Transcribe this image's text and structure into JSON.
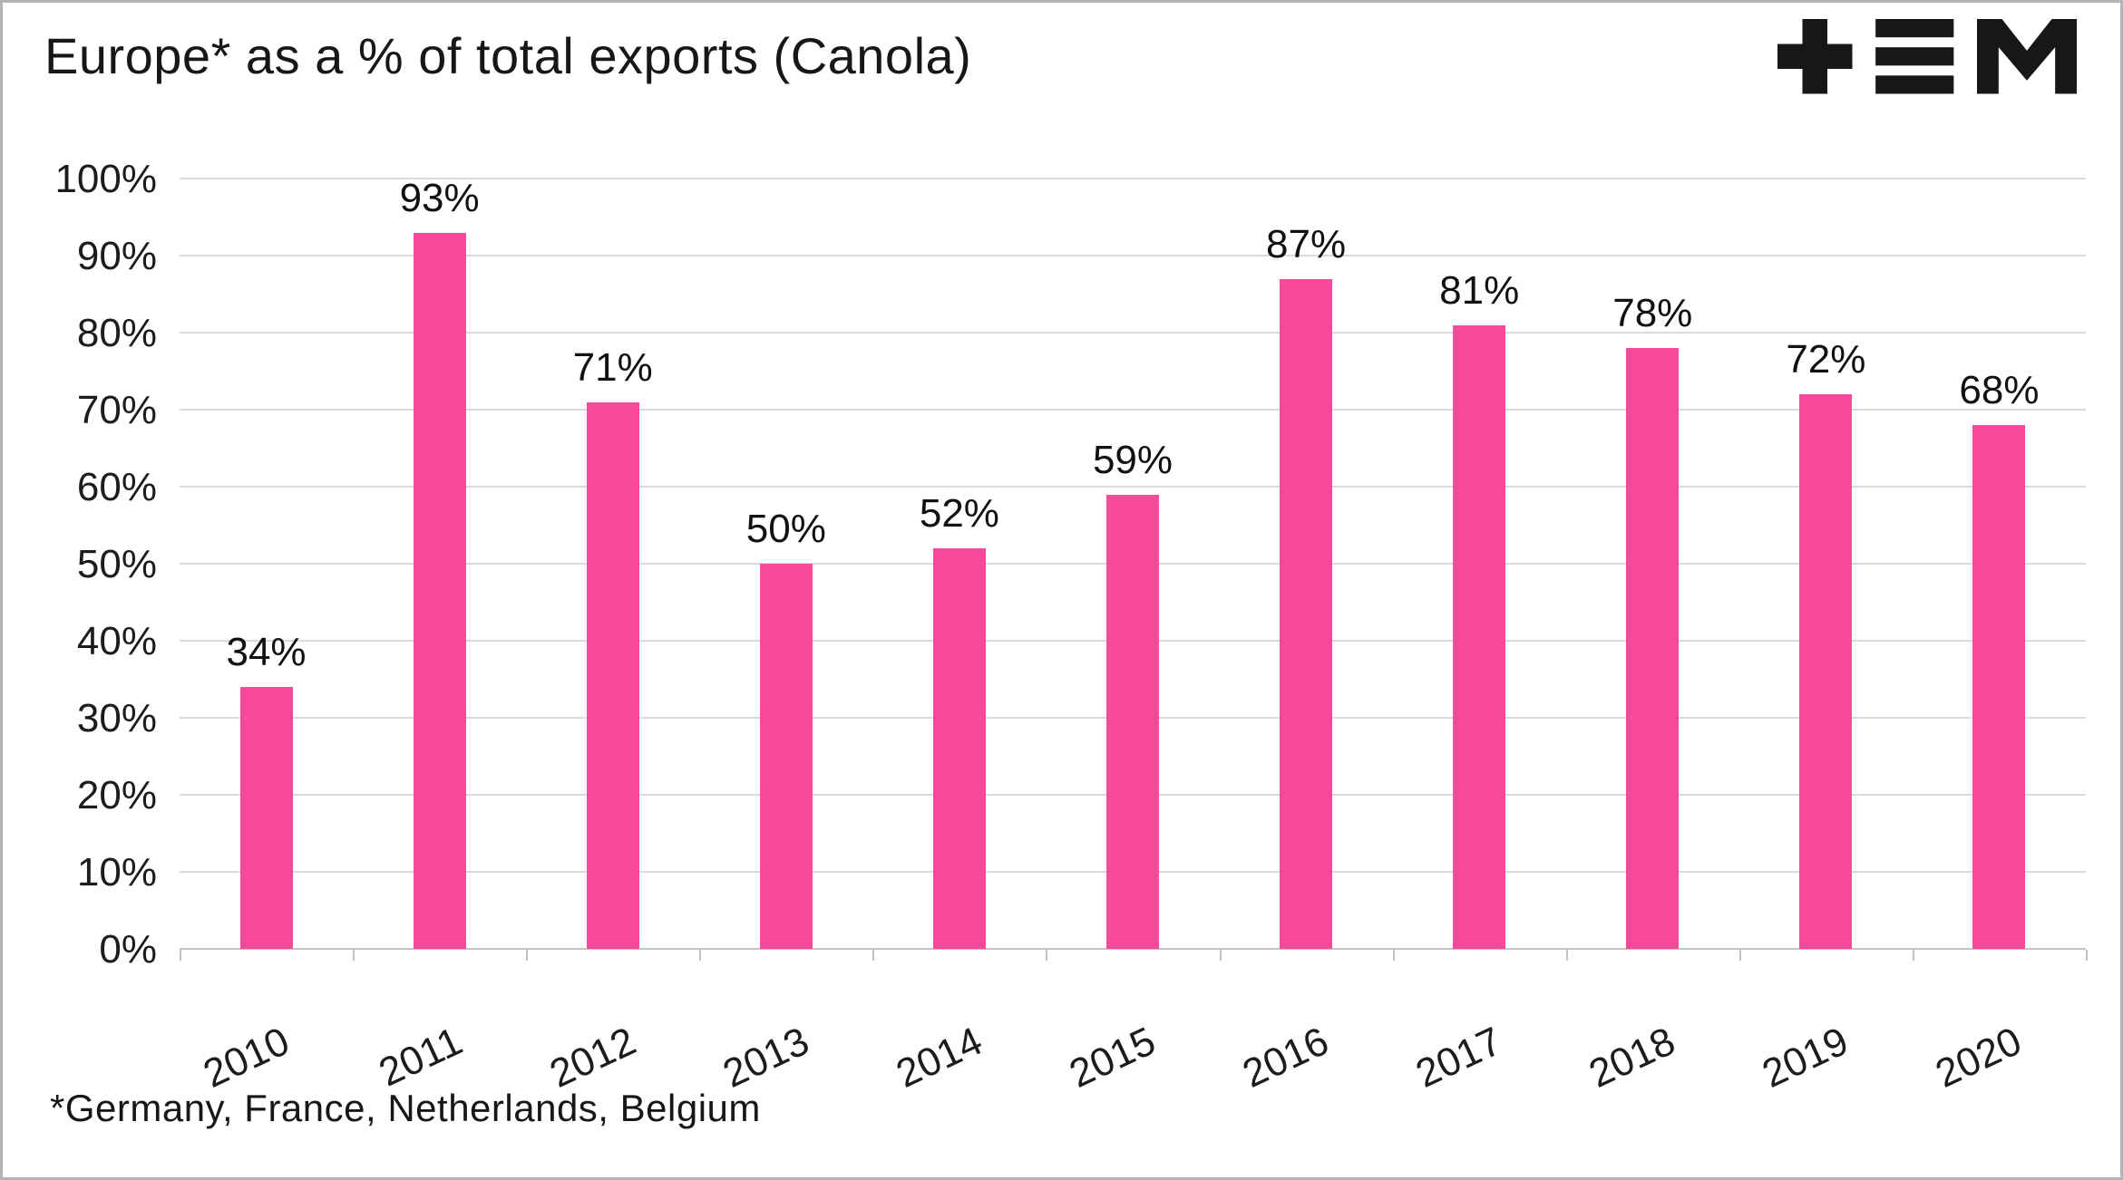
{
  "header": {
    "title": "Europe* as a % of total exports (Canola)",
    "logo_icon": "tem-logo"
  },
  "footnote": "*Germany, France, Netherlands, Belgium",
  "chart_data": {
    "type": "bar",
    "title": "Europe* as a % of total exports (Canola)",
    "categories": [
      "2010",
      "2011",
      "2012",
      "2013",
      "2014",
      "2015",
      "2016",
      "2017",
      "2018",
      "2019",
      "2020"
    ],
    "values": [
      34,
      93,
      71,
      50,
      52,
      59,
      87,
      81,
      78,
      72,
      68
    ],
    "data_labels": [
      "34%",
      "93%",
      "71%",
      "50%",
      "52%",
      "59%",
      "87%",
      "81%",
      "78%",
      "72%",
      "68%"
    ],
    "xlabel": "",
    "ylabel": "",
    "ylim": [
      0,
      100
    ],
    "ytick_step": 10,
    "yticks": [
      "0%",
      "10%",
      "20%",
      "30%",
      "40%",
      "50%",
      "60%",
      "70%",
      "80%",
      "90%",
      "100%"
    ],
    "grid": true,
    "legend": "none",
    "bar_color": "#f9499b",
    "footnote": "*Germany, France, Netherlands, Belgium"
  }
}
